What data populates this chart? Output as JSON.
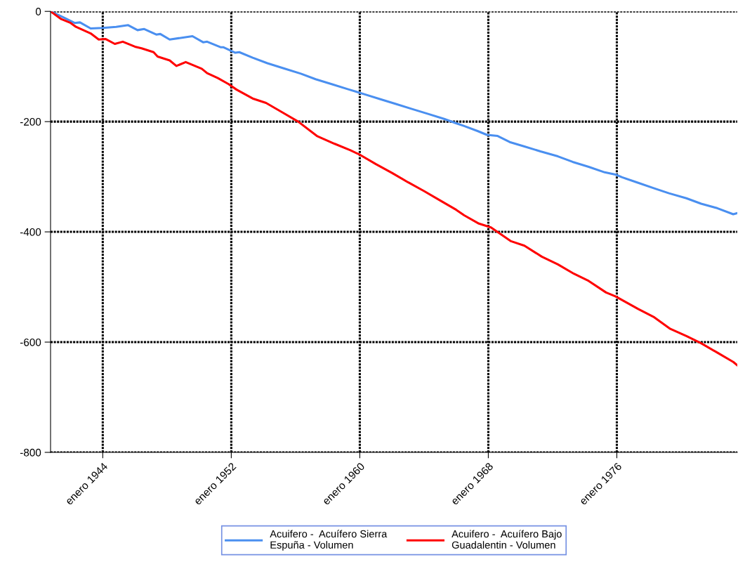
{
  "chart_data": {
    "type": "line",
    "xlim": [
      "1940-10",
      "1983-07"
    ],
    "xticks": [
      {
        "value": "1944-01",
        "label": "enero 1944"
      },
      {
        "value": "1952-01",
        "label": "enero 1952"
      },
      {
        "value": "1960-01",
        "label": "enero 1960"
      },
      {
        "value": "1968-01",
        "label": "enero 1968"
      },
      {
        "value": "1976-01",
        "label": "enero 1976"
      }
    ],
    "ylim": [
      -800,
      0
    ],
    "yticks": [
      -800,
      -600,
      -400,
      -200,
      0
    ],
    "grid": true,
    "legend": "bottom",
    "line_style": "solid",
    "series": [
      {
        "name": "Acuifero -  Acuífero Sierra\nEspuña - Volumen",
        "color": "#4a8ff0",
        "x": [
          "1940-10",
          "1941-07",
          "1942-04",
          "1942-08",
          "1943-04",
          "1944-01",
          "1944-11",
          "1945-08",
          "1946-03",
          "1946-08",
          "1947-05",
          "1947-08",
          "1948-03",
          "1949-08",
          "1950-04",
          "1950-07",
          "1951-05",
          "1951-07",
          "1952-04",
          "1952-07",
          "1953-05",
          "1954-04",
          "1955-05",
          "1956-05",
          "1957-04",
          "1958-04",
          "1959-04",
          "1960-04",
          "1961-04",
          "1962-04",
          "1963-04",
          "1964-04",
          "1965-04",
          "1966-01",
          "1966-07",
          "1967-05",
          "1967-12",
          "1968-08",
          "1969-05",
          "1970-04",
          "1971-04",
          "1972-05",
          "1973-04",
          "1974-04",
          "1975-04",
          "1975-12",
          "1976-05",
          "1977-05",
          "1978-05",
          "1979-04",
          "1980-05",
          "1981-04",
          "1982-04",
          "1983-04",
          "1983-07"
        ],
        "values": [
          0,
          -10,
          -21,
          -20,
          -31,
          -30,
          -28,
          -25,
          -34,
          -32,
          -42,
          -41,
          -51,
          -45,
          -56,
          -55,
          -65,
          -65,
          -75,
          -74,
          -84,
          -94,
          -104,
          -113,
          -123,
          -132,
          -141,
          -150,
          -159,
          -168,
          -177,
          -186,
          -195,
          -203,
          -208,
          -217,
          -224,
          -226,
          -237,
          -245,
          -254,
          -263,
          -273,
          -282,
          -292,
          -296,
          -301,
          -311,
          -321,
          -330,
          -339,
          -349,
          -357,
          -368,
          -366
        ]
      },
      {
        "name": "Acuifero -  Acuífero Bajo\nGuadalentin - Volumen",
        "color": "#ff0000",
        "x": [
          "1940-10",
          "1941-06",
          "1942-01",
          "1942-05",
          "1943-04",
          "1943-10",
          "1944-03",
          "1944-10",
          "1945-04",
          "1946-01",
          "1946-06",
          "1947-03",
          "1947-06",
          "1948-03",
          "1948-08",
          "1949-03",
          "1950-03",
          "1950-07",
          "1951-03",
          "1951-11",
          "1952-05",
          "1953-05",
          "1954-03",
          "1955-03",
          "1956-03",
          "1957-05",
          "1958-06",
          "1959-06",
          "1960-01",
          "1961-01",
          "1962-01",
          "1963-01",
          "1964-01",
          "1965-01",
          "1966-01",
          "1966-07",
          "1967-06",
          "1968-03",
          "1969-06",
          "1970-04",
          "1971-05",
          "1972-05",
          "1973-05",
          "1974-04",
          "1975-05",
          "1975-12",
          "1977-05",
          "1978-05",
          "1979-05",
          "1980-05",
          "1981-04",
          "1982-04",
          "1983-04",
          "1983-07"
        ],
        "values": [
          0,
          -14,
          -21,
          -28,
          -40,
          -51,
          -50,
          -59,
          -55,
          -64,
          -67,
          -74,
          -82,
          -89,
          -99,
          -92,
          -104,
          -112,
          -121,
          -132,
          -142,
          -158,
          -166,
          -183,
          -200,
          -226,
          -240,
          -252,
          -260,
          -277,
          -293,
          -310,
          -326,
          -343,
          -360,
          -370,
          -385,
          -392,
          -417,
          -425,
          -445,
          -459,
          -476,
          -489,
          -510,
          -517,
          -540,
          -555,
          -576,
          -589,
          -602,
          -619,
          -636,
          -642
        ]
      }
    ]
  }
}
